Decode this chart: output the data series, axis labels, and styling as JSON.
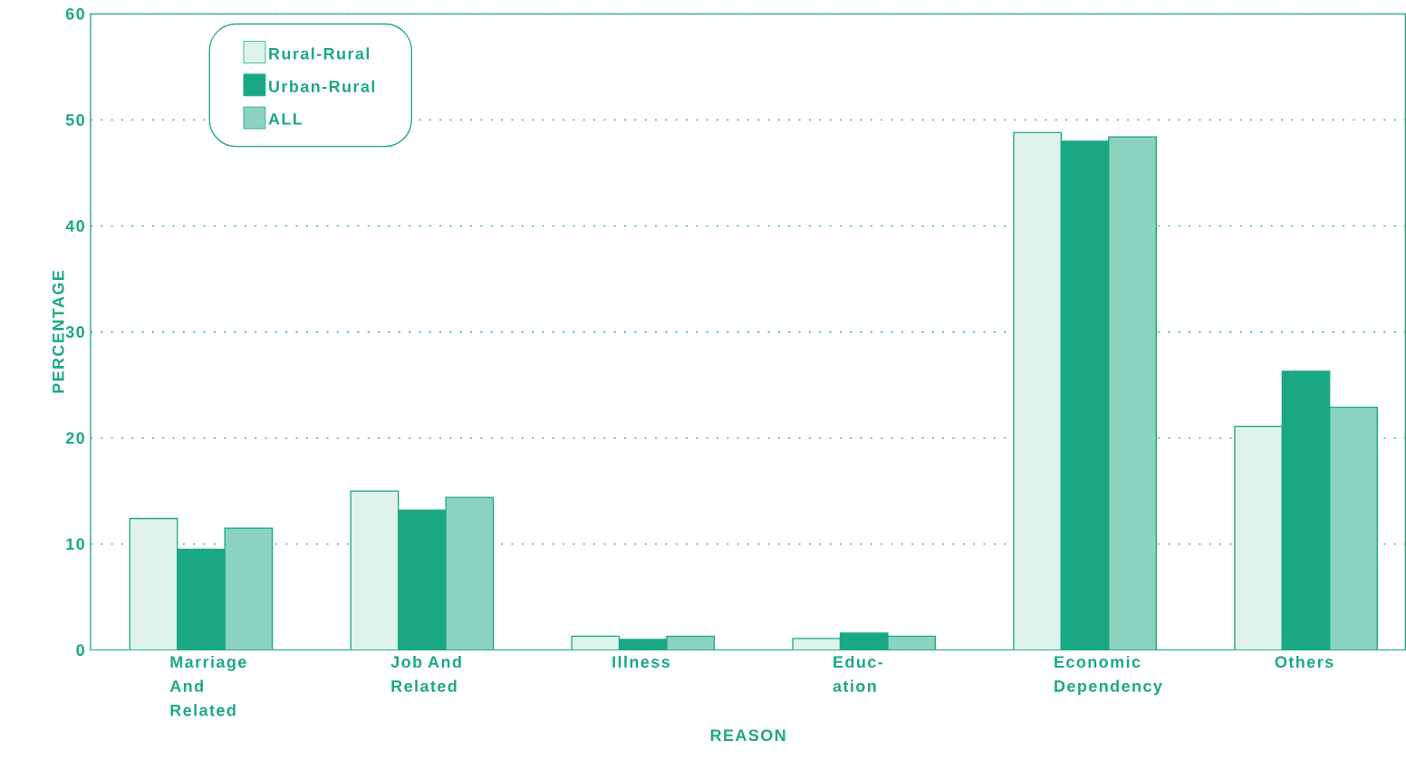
{
  "chart_data": {
    "type": "bar",
    "xlabel": "REASON",
    "ylabel": "PERCENTAGE",
    "categories": [
      "Marriage And Related",
      "Job And Related",
      "Illness",
      "Educ-ation",
      "Economic Dependency",
      "Others"
    ],
    "series": [
      {
        "name": "Rural-Rural",
        "color": "#dff3ec",
        "values": [
          12.4,
          15.0,
          1.3,
          1.1,
          48.8,
          21.1
        ]
      },
      {
        "name": "Urban-Rural",
        "color": "#1aa884",
        "values": [
          9.5,
          13.2,
          1.0,
          1.6,
          48.0,
          26.3
        ]
      },
      {
        "name": "ALL",
        "color": "#8cd3bf",
        "values": [
          11.5,
          14.4,
          1.3,
          1.3,
          48.4,
          22.9
        ]
      }
    ],
    "ylim": [
      0,
      60
    ],
    "yticks": [
      0,
      10,
      20,
      30,
      40,
      50,
      60
    ],
    "grid": "y",
    "legend": "top left"
  }
}
